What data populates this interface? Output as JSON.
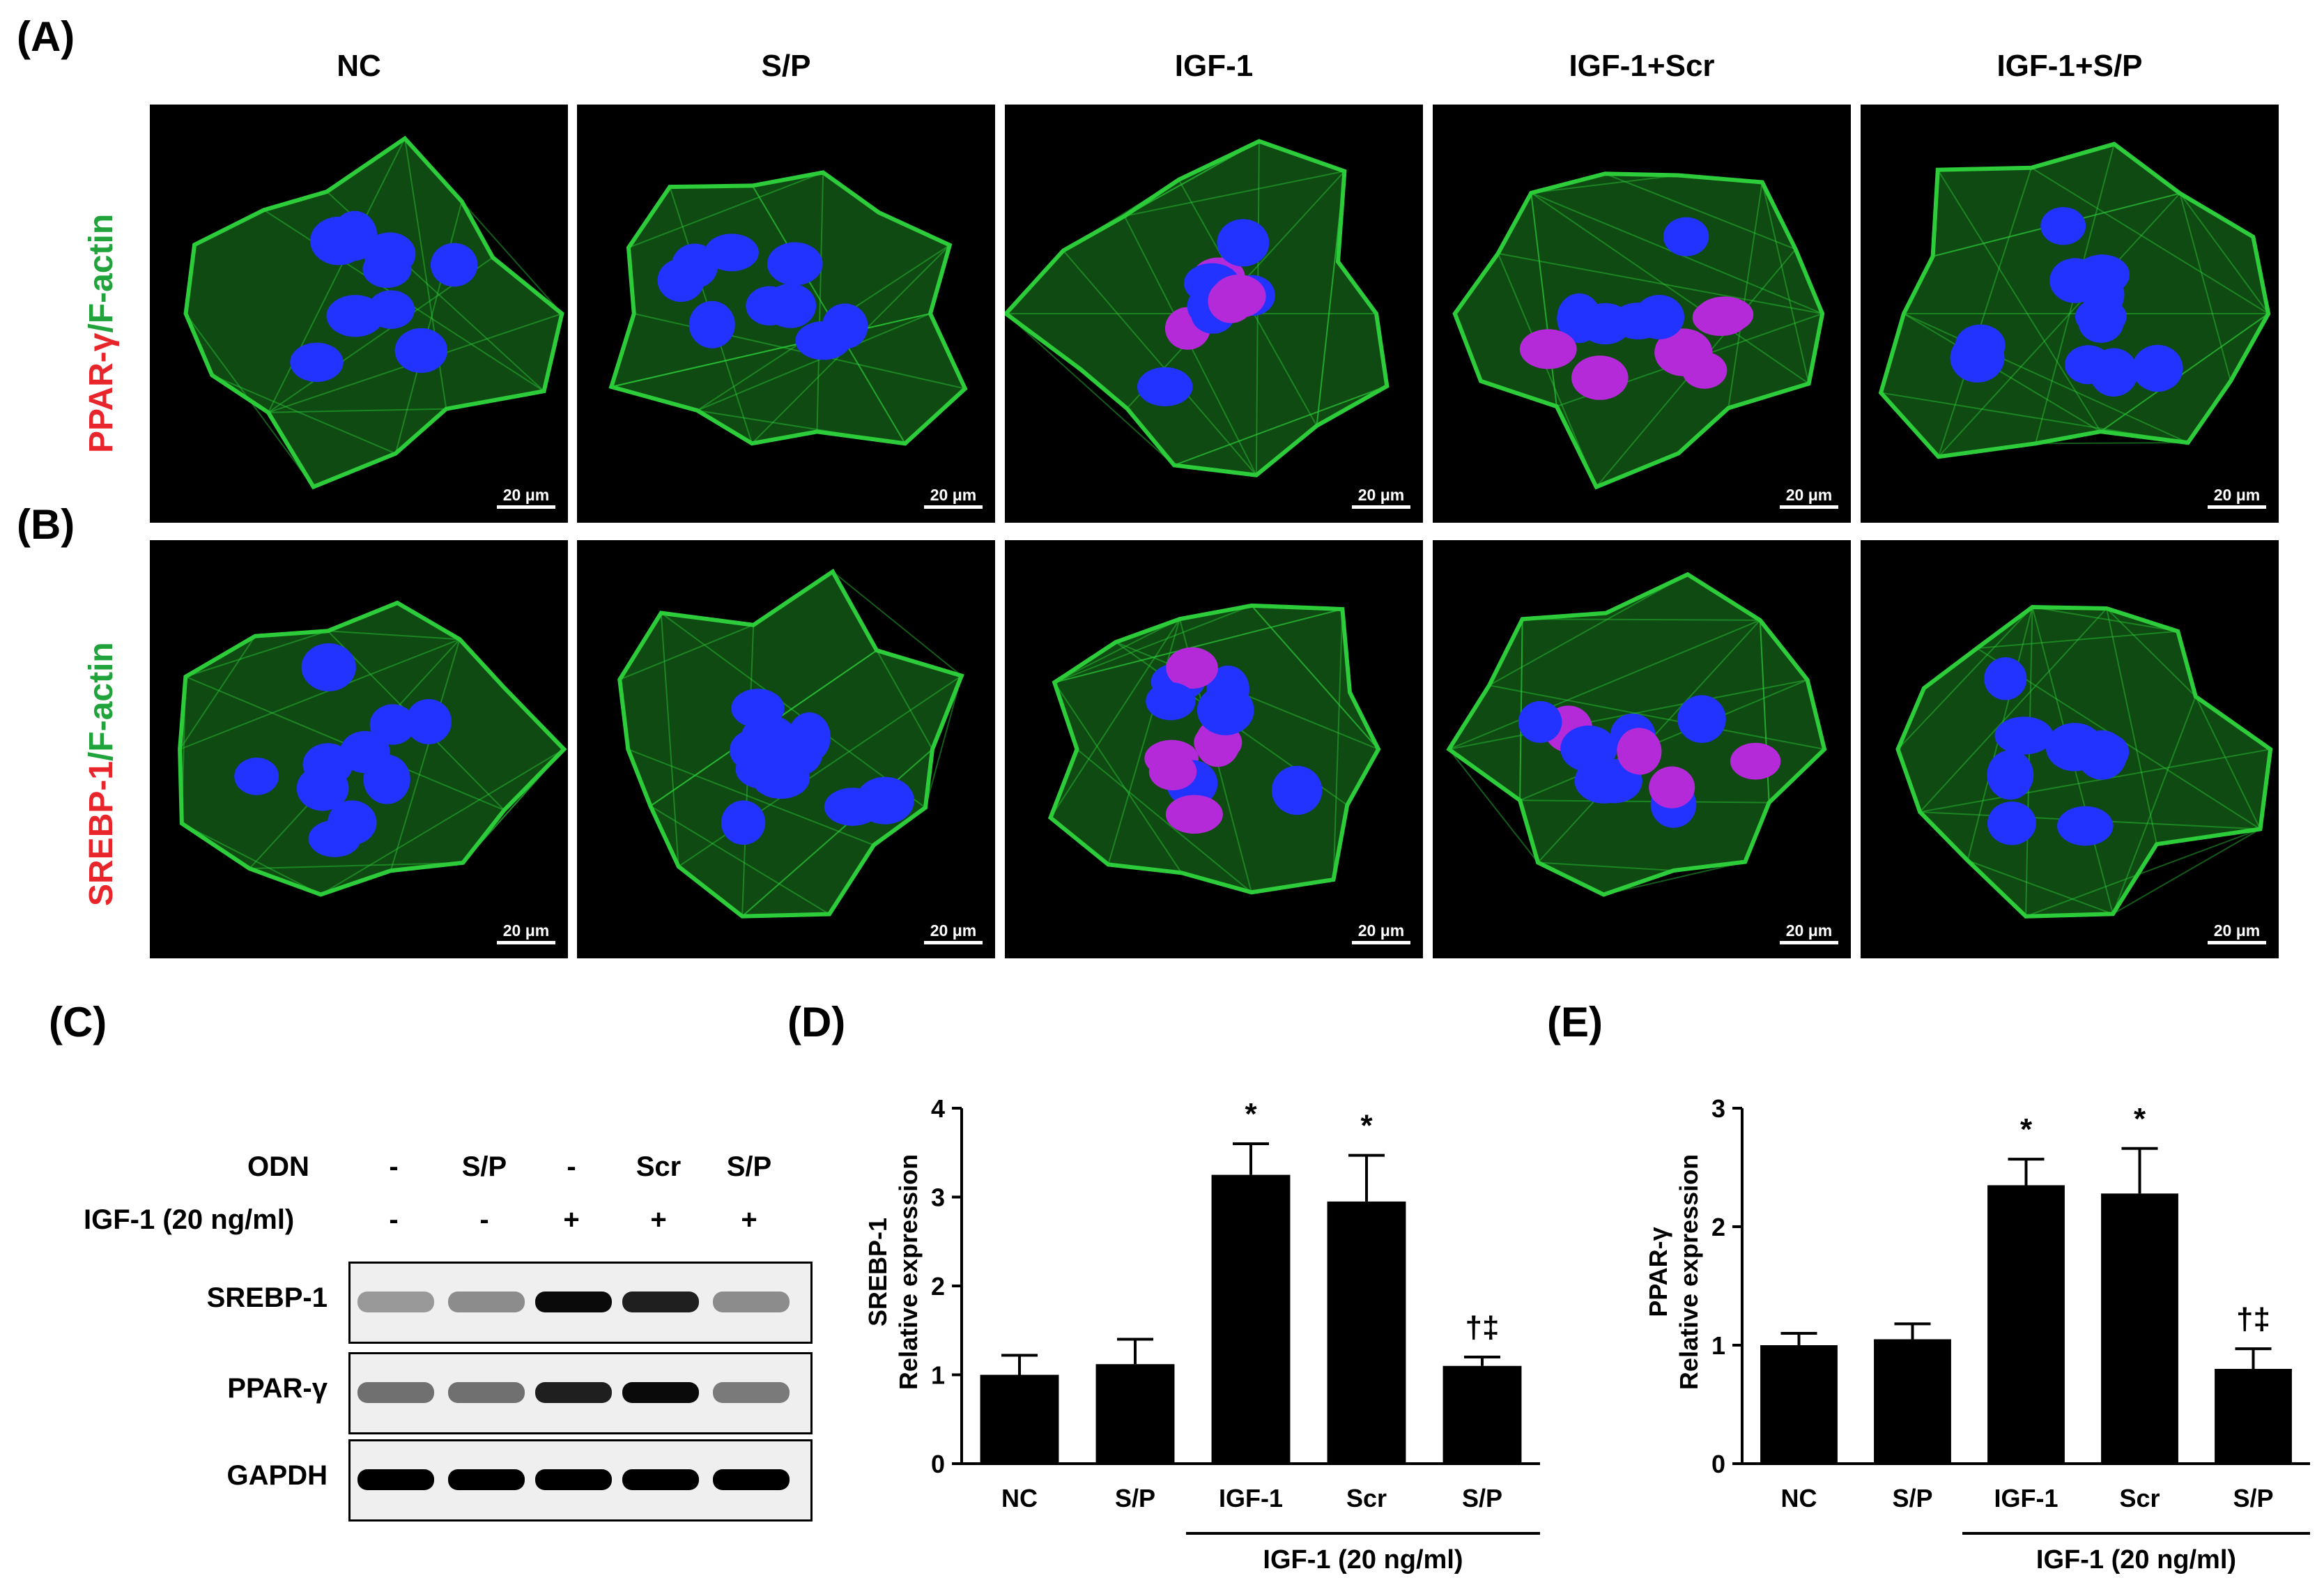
{
  "figure": {
    "panel_labels": {
      "a": "(A)",
      "b": "(B)",
      "c": "(C)",
      "d": "(D)",
      "e": "(E)"
    },
    "columns": [
      "NC",
      "S/P",
      "IGF-1",
      "IGF-1+Scr",
      "IGF-1+S/P"
    ],
    "row_a_label": {
      "red_part": "PPAR-γ",
      "green_part": "/F-actin"
    },
    "row_b_label": {
      "red_part": "SREBP-1",
      "green_part": "/F-actin"
    },
    "scale_bar": "20 μm",
    "colors": {
      "red": "#e8252a",
      "green": "#1fa33a",
      "nucleus": "#2233ff",
      "actin": "#2ccc3a"
    }
  },
  "blot": {
    "odn_label": "ODN",
    "igf_label": "IGF-1 (20 ng/ml)",
    "odn_values": [
      "-",
      "S/P",
      "-",
      "Scr",
      "S/P"
    ],
    "igf_values": [
      "-",
      "-",
      "+",
      "+",
      "+"
    ],
    "rows": [
      "SREBP-1",
      "PPAR-γ",
      "GAPDH"
    ],
    "intensity": [
      [
        0.25,
        0.3,
        0.95,
        0.85,
        0.3
      ],
      [
        0.45,
        0.45,
        0.85,
        0.95,
        0.4
      ],
      [
        1.0,
        1.0,
        1.0,
        1.0,
        1.0
      ]
    ]
  },
  "chart_data": [
    {
      "type": "bar",
      "panel": "(D)",
      "categories": [
        "NC",
        "S/P",
        "IGF-1",
        "Scr",
        "S/P"
      ],
      "values": [
        1.0,
        1.12,
        3.25,
        2.95,
        1.1
      ],
      "errors": [
        0.22,
        0.28,
        0.35,
        0.52,
        0.1
      ],
      "annotations": [
        "",
        "",
        "*",
        "*",
        "†‡"
      ],
      "ylabel_line1": "SREBP-1",
      "ylabel_line2": "Relative expression",
      "ylim": [
        0,
        4
      ],
      "yticks": [
        "0",
        "1",
        "2",
        "3",
        "4"
      ],
      "group_label": "IGF-1 (20 ng/ml)"
    },
    {
      "type": "bar",
      "panel": "(E)",
      "categories": [
        "NC",
        "S/P",
        "IGF-1",
        "Scr",
        "S/P"
      ],
      "values": [
        1.0,
        1.05,
        2.35,
        2.28,
        0.8
      ],
      "errors": [
        0.1,
        0.13,
        0.22,
        0.38,
        0.17
      ],
      "annotations": [
        "",
        "",
        "*",
        "*",
        "†‡"
      ],
      "ylabel_line1": "PPAR-γ",
      "ylabel_line2": "Relative expression",
      "ylim": [
        0,
        3
      ],
      "yticks": [
        "0",
        "1",
        "2",
        "3"
      ],
      "group_label": "IGF-1 (20 ng/ml)"
    }
  ]
}
